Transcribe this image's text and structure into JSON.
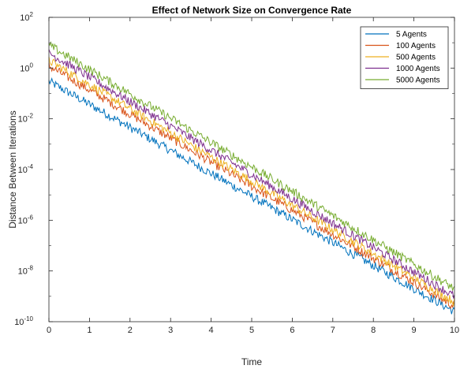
{
  "chart_data": {
    "type": "line",
    "title": "Effect of Network Size on Convergence Rate",
    "xlabel": "Time",
    "ylabel": "Distance Between Iterations",
    "xlim": [
      0,
      10
    ],
    "ylim": [
      1e-10,
      100
    ],
    "yscale": "log",
    "x_ticks": [
      0,
      1,
      2,
      3,
      4,
      5,
      6,
      7,
      8,
      9,
      10
    ],
    "y_ticks": [
      {
        "base": "10",
        "exp": "2"
      },
      {
        "base": "10",
        "exp": "0"
      },
      {
        "base": "10",
        "exp": "-2"
      },
      {
        "base": "10",
        "exp": "-4"
      },
      {
        "base": "10",
        "exp": "-6"
      },
      {
        "base": "10",
        "exp": "-8"
      },
      {
        "base": "10",
        "exp": "-10"
      }
    ],
    "grid": false,
    "legend_position": "top-right",
    "series": [
      {
        "name": "5 Agents",
        "color": "#0072BD",
        "x": [
          0,
          10
        ],
        "y": [
          0.3,
          2.5e-10
        ]
      },
      {
        "name": "100 Agents",
        "color": "#D95319",
        "x": [
          0,
          10
        ],
        "y": [
          1.2,
          4e-10
        ]
      },
      {
        "name": "500 Agents",
        "color": "#EDB120",
        "x": [
          0,
          10
        ],
        "y": [
          2.0,
          6e-10
        ]
      },
      {
        "name": "1000 Agents",
        "color": "#7E2F8E",
        "x": [
          0,
          10
        ],
        "y": [
          4.0,
          1e-09
        ]
      },
      {
        "name": "5000 Agents",
        "color": "#77AC30",
        "x": [
          0,
          10
        ],
        "y": [
          8.0,
          2e-09
        ]
      }
    ]
  }
}
